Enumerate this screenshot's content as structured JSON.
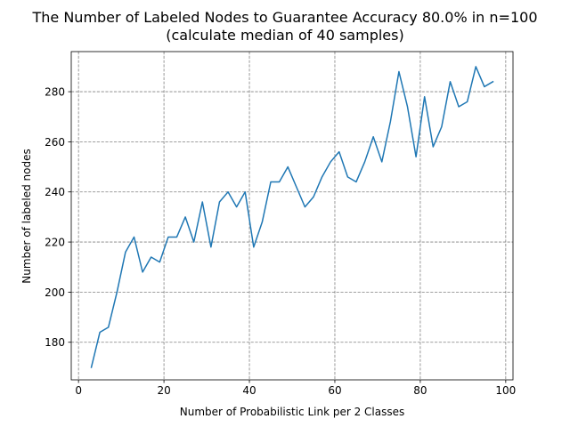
{
  "chart_data": {
    "type": "line",
    "title_line1": "The Number of Labeled Nodes to Guarantee Accuracy 80.0% in n=100",
    "title_line2": "(calculate median of 40 samples)",
    "xlabel": "Number of Probabilistic Link per 2 Classes",
    "ylabel": "Number of labeled nodes",
    "xlim": [
      -1.7,
      101.7
    ],
    "ylim": [
      165,
      296
    ],
    "xticks": [
      0,
      20,
      40,
      60,
      80,
      100
    ],
    "yticks": [
      180,
      200,
      220,
      240,
      260,
      280
    ],
    "grid": true,
    "series": [
      {
        "color": "#1f77b4",
        "x": [
          3,
          5,
          7,
          9,
          11,
          13,
          15,
          17,
          19,
          21,
          23,
          25,
          27,
          29,
          31,
          33,
          35,
          37,
          39,
          41,
          43,
          45,
          47,
          49,
          51,
          53,
          55,
          57,
          59,
          61,
          63,
          65,
          67,
          69,
          71,
          73,
          75,
          77,
          79,
          81,
          83,
          85,
          87,
          89,
          91,
          93,
          95,
          97
        ],
        "y": [
          170,
          184,
          186,
          200,
          216,
          222,
          208,
          214,
          212,
          222,
          222,
          230,
          220,
          236,
          218,
          236,
          240,
          234,
          240,
          218,
          228,
          244,
          244,
          250,
          242,
          234,
          238,
          246,
          252,
          256,
          246,
          244,
          252,
          262,
          252,
          268,
          288,
          274,
          254,
          278,
          258,
          266,
          284,
          274,
          276,
          290,
          282,
          284
        ]
      }
    ]
  }
}
